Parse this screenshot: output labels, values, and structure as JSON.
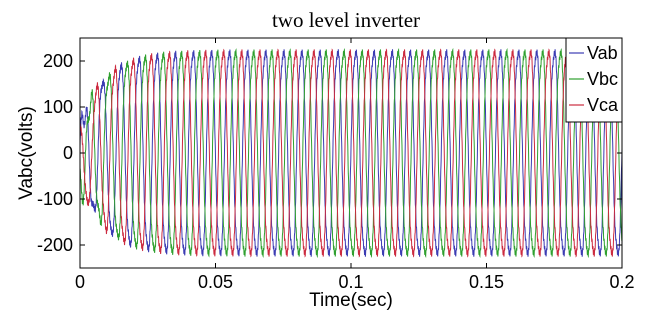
{
  "chart_data": {
    "type": "line",
    "title": "two level inverter",
    "xlabel": "Time(sec)",
    "ylabel": "Vabc(volts)",
    "xlim": [
      0,
      0.2
    ],
    "ylim": [
      -250,
      250
    ],
    "x_ticks": [
      0,
      0.05,
      0.1,
      0.15,
      0.2
    ],
    "x_tick_labels": [
      "0",
      "0.05",
      "0.1",
      "0.15",
      "0.2"
    ],
    "y_ticks": [
      -200,
      -100,
      0,
      100,
      200
    ],
    "y_tick_labels": [
      "-200",
      "-100",
      "0",
      "100",
      "200"
    ],
    "grid": false,
    "legend_position": "top-right",
    "fundamental_frequency_hz": 150,
    "steady_state_amplitude_volts": 230,
    "series": [
      {
        "name": "Vab",
        "color": "#3b3bb3",
        "phase_deg": 0
      },
      {
        "name": "Vbc",
        "color": "#2fa02f",
        "phase_deg": -120
      },
      {
        "name": "Vca",
        "color": "#cc2a3f",
        "phase_deg": 120
      }
    ]
  }
}
